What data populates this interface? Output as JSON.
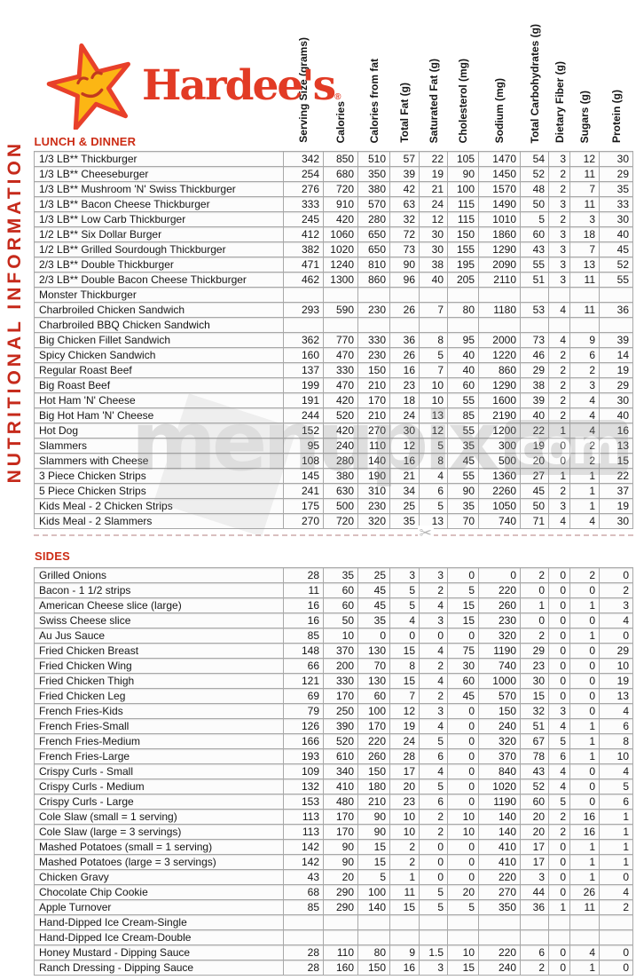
{
  "page_title": "NUTRITIONAL INFORMATION",
  "brand": {
    "name": "Hardee's",
    "registered": "®"
  },
  "icons": {
    "scissors": "✂",
    "star": "star-smiley-face"
  },
  "colors": {
    "accent_red": "#c62a1b",
    "logo_red": "#e23b25",
    "star_yellow": "#fcb614",
    "grid_gray": "#a8a8a8"
  },
  "watermark": {
    "text": "menupix",
    "suffix": "com"
  },
  "columns": [
    "Serving Size (grams)",
    "Calories",
    "Calories from fat",
    "Total Fat (g)",
    "Saturated Fat (g)",
    "Cholesterol (mg)",
    "Sodium (mg)",
    "Total Carbohydrates (g)",
    "Dietary Fiber (g)",
    "Sugars (g)",
    "Protein (g)"
  ],
  "sections": [
    {
      "title": "LUNCH & DINNER",
      "rows": [
        {
          "name": "1/3 LB** Thickburger",
          "values": [
            342,
            850,
            510,
            57,
            22,
            105,
            1470,
            54,
            3,
            12,
            30
          ]
        },
        {
          "name": "1/3 LB** Cheeseburger",
          "values": [
            254,
            680,
            350,
            39,
            19,
            90,
            1450,
            52,
            2,
            11,
            29
          ]
        },
        {
          "name": "1/3 LB** Mushroom 'N' Swiss Thickburger",
          "values": [
            276,
            720,
            380,
            42,
            21,
            100,
            1570,
            48,
            2,
            7,
            35
          ]
        },
        {
          "name": "1/3 LB** Bacon Cheese Thickburger",
          "values": [
            333,
            910,
            570,
            63,
            24,
            115,
            1490,
            50,
            3,
            11,
            33
          ]
        },
        {
          "name": "1/3 LB** Low Carb Thickburger",
          "values": [
            245,
            420,
            280,
            32,
            12,
            115,
            1010,
            5,
            2,
            3,
            30
          ]
        },
        {
          "name": "1/2 LB** Six Dollar Burger",
          "values": [
            412,
            1060,
            650,
            72,
            30,
            150,
            1860,
            60,
            3,
            18,
            40
          ]
        },
        {
          "name": "1/2 LB** Grilled Sourdough Thickburger",
          "values": [
            382,
            1020,
            650,
            73,
            30,
            155,
            1290,
            43,
            3,
            7,
            45
          ]
        },
        {
          "name": "2/3 LB** Double Thickburger",
          "values": [
            471,
            1240,
            810,
            90,
            38,
            195,
            2090,
            55,
            3,
            13,
            52
          ]
        },
        {
          "name": "2/3 LB** Double Bacon Cheese Thickburger",
          "values": [
            462,
            1300,
            860,
            96,
            40,
            205,
            2110,
            51,
            3,
            11,
            55
          ]
        },
        {
          "name": "Monster Thickburger",
          "values": []
        },
        {
          "name": "Charbroiled Chicken Sandwich",
          "values": [
            293,
            590,
            230,
            26,
            7,
            80,
            1180,
            53,
            4,
            11,
            36
          ]
        },
        {
          "name": "Charbroiled BBQ Chicken Sandwich",
          "values": []
        },
        {
          "name": "Big Chicken Fillet Sandwich",
          "values": [
            362,
            770,
            330,
            36,
            8,
            95,
            2000,
            73,
            4,
            9,
            39
          ]
        },
        {
          "name": "Spicy Chicken Sandwich",
          "values": [
            160,
            470,
            230,
            26,
            5,
            40,
            1220,
            46,
            2,
            6,
            14
          ]
        },
        {
          "name": "Regular Roast Beef",
          "values": [
            137,
            330,
            150,
            16,
            7,
            40,
            860,
            29,
            2,
            2,
            19
          ]
        },
        {
          "name": "Big Roast Beef",
          "values": [
            199,
            470,
            210,
            23,
            10,
            60,
            1290,
            38,
            2,
            3,
            29
          ]
        },
        {
          "name": "Hot Ham 'N' Cheese",
          "values": [
            191,
            420,
            170,
            18,
            10,
            55,
            1600,
            39,
            2,
            4,
            30
          ]
        },
        {
          "name": "Big Hot Ham 'N' Cheese",
          "values": [
            244,
            520,
            210,
            24,
            13,
            85,
            2190,
            40,
            2,
            4,
            40
          ]
        },
        {
          "name": "Hot Dog",
          "values": [
            152,
            420,
            270,
            30,
            12,
            55,
            1200,
            22,
            1,
            4,
            16
          ]
        },
        {
          "name": "Slammers",
          "values": [
            95,
            240,
            110,
            12,
            5,
            35,
            300,
            19,
            0,
            2,
            13
          ]
        },
        {
          "name": "Slammers with Cheese",
          "values": [
            108,
            280,
            140,
            16,
            8,
            45,
            500,
            20,
            0,
            2,
            15
          ]
        },
        {
          "name": "3 Piece Chicken Strips",
          "values": [
            145,
            380,
            190,
            21,
            4,
            55,
            1360,
            27,
            1,
            1,
            22
          ]
        },
        {
          "name": "5 Piece Chicken Strips",
          "values": [
            241,
            630,
            310,
            34,
            6,
            90,
            2260,
            45,
            2,
            1,
            37
          ]
        },
        {
          "name": "Kids Meal - 2 Chicken Strips",
          "values": [
            175,
            500,
            230,
            25,
            5,
            35,
            1050,
            50,
            3,
            1,
            19
          ]
        },
        {
          "name": "Kids Meal - 2 Slammers",
          "values": [
            270,
            720,
            320,
            35,
            13,
            70,
            740,
            71,
            4,
            4,
            30
          ]
        }
      ]
    },
    {
      "title": "SIDES",
      "rows": [
        {
          "name": "Grilled Onions",
          "values": [
            28,
            35,
            25,
            3,
            3,
            0,
            0,
            2,
            0,
            2,
            0
          ]
        },
        {
          "name": "Bacon - 1 1/2 strips",
          "values": [
            11,
            60,
            45,
            5,
            2,
            5,
            220,
            0,
            0,
            0,
            2
          ]
        },
        {
          "name": "American Cheese slice (large)",
          "values": [
            16,
            60,
            45,
            5,
            4,
            15,
            260,
            1,
            0,
            1,
            3
          ]
        },
        {
          "name": "Swiss Cheese slice",
          "values": [
            16,
            50,
            35,
            4,
            3,
            15,
            230,
            0,
            0,
            0,
            4
          ]
        },
        {
          "name": "Au Jus Sauce",
          "values": [
            85,
            10,
            0,
            0,
            0,
            0,
            320,
            2,
            0,
            1,
            0
          ]
        },
        {
          "name": "Fried Chicken Breast",
          "values": [
            148,
            370,
            130,
            15,
            4,
            75,
            1190,
            29,
            0,
            0,
            29
          ]
        },
        {
          "name": "Fried Chicken Wing",
          "values": [
            66,
            200,
            70,
            8,
            2,
            30,
            740,
            23,
            0,
            0,
            10
          ]
        },
        {
          "name": "Fried Chicken Thigh",
          "values": [
            121,
            330,
            130,
            15,
            4,
            60,
            1000,
            30,
            0,
            0,
            19
          ]
        },
        {
          "name": "Fried Chicken Leg",
          "values": [
            69,
            170,
            60,
            7,
            2,
            45,
            570,
            15,
            0,
            0,
            13
          ]
        },
        {
          "name": "French Fries-Kids",
          "values": [
            79,
            250,
            100,
            12,
            3,
            0,
            150,
            32,
            3,
            0,
            4
          ]
        },
        {
          "name": "French Fries-Small",
          "values": [
            126,
            390,
            170,
            19,
            4,
            0,
            240,
            51,
            4,
            1,
            6
          ]
        },
        {
          "name": "French Fries-Medium",
          "values": [
            166,
            520,
            220,
            24,
            5,
            0,
            320,
            67,
            5,
            1,
            8
          ]
        },
        {
          "name": "French Fries-Large",
          "values": [
            193,
            610,
            260,
            28,
            6,
            0,
            370,
            78,
            6,
            1,
            10
          ]
        },
        {
          "name": "Crispy Curls - Small",
          "values": [
            109,
            340,
            150,
            17,
            4,
            0,
            840,
            43,
            4,
            0,
            4
          ]
        },
        {
          "name": "Crispy Curls - Medium",
          "values": [
            132,
            410,
            180,
            20,
            5,
            0,
            1020,
            52,
            4,
            0,
            5
          ]
        },
        {
          "name": "Crispy Curls - Large",
          "values": [
            153,
            480,
            210,
            23,
            6,
            0,
            1190,
            60,
            5,
            0,
            6
          ]
        },
        {
          "name": "Cole Slaw (small = 1 serving)",
          "values": [
            113,
            170,
            90,
            10,
            2,
            10,
            140,
            20,
            2,
            16,
            1
          ]
        },
        {
          "name": "Cole Slaw (large = 3 servings)",
          "values": [
            113,
            170,
            90,
            10,
            2,
            10,
            140,
            20,
            2,
            16,
            1
          ]
        },
        {
          "name": "Mashed Potatoes (small = 1 serving)",
          "values": [
            142,
            90,
            15,
            2,
            0,
            0,
            410,
            17,
            0,
            1,
            1
          ]
        },
        {
          "name": "Mashed Potatoes (large = 3 servings)",
          "values": [
            142,
            90,
            15,
            2,
            0,
            0,
            410,
            17,
            0,
            1,
            1
          ]
        },
        {
          "name": "Chicken Gravy",
          "values": [
            43,
            20,
            5,
            1,
            0,
            0,
            220,
            3,
            0,
            1,
            0
          ]
        },
        {
          "name": "Chocolate Chip Cookie",
          "values": [
            68,
            290,
            100,
            11,
            5,
            20,
            270,
            44,
            0,
            26,
            4
          ]
        },
        {
          "name": "Apple Turnover",
          "values": [
            85,
            290,
            140,
            15,
            5,
            5,
            350,
            36,
            1,
            11,
            2
          ]
        },
        {
          "name": "Hand-Dipped Ice Cream-Single",
          "values": []
        },
        {
          "name": "Hand-Dipped Ice Cream-Double",
          "values": []
        },
        {
          "name": "Honey Mustard - Dipping Sauce",
          "values": [
            28,
            110,
            80,
            9,
            1.5,
            10,
            220,
            6,
            0,
            4,
            0
          ]
        },
        {
          "name": "Ranch Dressing - Dipping Sauce",
          "values": [
            28,
            160,
            150,
            16,
            3,
            15,
            240,
            2,
            0,
            1,
            0
          ]
        }
      ]
    }
  ]
}
